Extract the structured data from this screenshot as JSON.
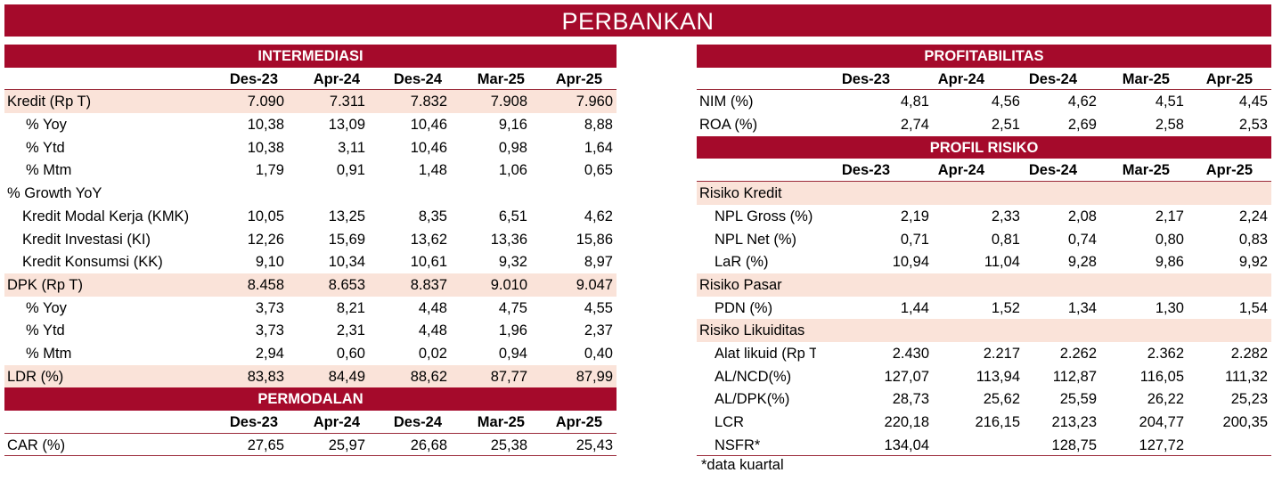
{
  "title": "PERBANKAN",
  "footnote": "*data kuartal",
  "periods": [
    "Des-23",
    "Apr-24",
    "Des-24",
    "Mar-25",
    "Apr-25"
  ],
  "intermediasi": {
    "section": "INTERMEDIASI",
    "rows": [
      {
        "label": "Kredit (Rp T)",
        "values": [
          "7.090",
          "7.311",
          "7.832",
          "7.908",
          "7.960"
        ]
      },
      {
        "label": "% Yoy",
        "values": [
          "10,38",
          "13,09",
          "10,46",
          "9,16",
          "8,88"
        ]
      },
      {
        "label": "% Ytd",
        "values": [
          "10,38",
          "3,11",
          "10,46",
          "0,98",
          "1,64"
        ]
      },
      {
        "label": "% Mtm",
        "values": [
          "1,79",
          "0,91",
          "1,48",
          "1,06",
          "0,65"
        ]
      },
      {
        "label": "% Growth YoY"
      },
      {
        "label": "Kredit Modal Kerja (KMK)",
        "values": [
          "10,05",
          "13,25",
          "8,35",
          "6,51",
          "4,62"
        ]
      },
      {
        "label": "Kredit Investasi (KI)",
        "values": [
          "12,26",
          "15,69",
          "13,62",
          "13,36",
          "15,86"
        ]
      },
      {
        "label": "Kredit Konsumsi (KK)",
        "values": [
          "9,10",
          "10,34",
          "10,61",
          "9,32",
          "8,97"
        ]
      },
      {
        "label": "DPK (Rp T)",
        "values": [
          "8.458",
          "8.653",
          "8.837",
          "9.010",
          "9.047"
        ]
      },
      {
        "label": "% Yoy",
        "values": [
          "3,73",
          "8,21",
          "4,48",
          "4,75",
          "4,55"
        ]
      },
      {
        "label": "% Ytd",
        "values": [
          "3,73",
          "2,31",
          "4,48",
          "1,96",
          "2,37"
        ]
      },
      {
        "label": "% Mtm",
        "values": [
          "2,94",
          "0,60",
          "0,02",
          "0,94",
          "0,40"
        ]
      },
      {
        "label": "LDR (%)",
        "values": [
          "83,83",
          "84,49",
          "88,62",
          "87,77",
          "87,99"
        ]
      }
    ]
  },
  "permodalan": {
    "section": "PERMODALAN",
    "rows": [
      {
        "label": "CAR (%)",
        "values": [
          "27,65",
          "25,97",
          "26,68",
          "25,38",
          "25,43"
        ]
      }
    ]
  },
  "profitabilitas": {
    "section": "PROFITABILITAS",
    "rows": [
      {
        "label": "NIM (%)",
        "values": [
          "4,81",
          "4,56",
          "4,62",
          "4,51",
          "4,45"
        ]
      },
      {
        "label": "ROA (%)",
        "values": [
          "2,74",
          "2,51",
          "2,69",
          "2,58",
          "2,53"
        ]
      }
    ]
  },
  "profil_risiko": {
    "section": "PROFIL RISIKO",
    "rows": [
      {
        "label": "Risiko Kredit"
      },
      {
        "label": "NPL Gross (%)",
        "values": [
          "2,19",
          "2,33",
          "2,08",
          "2,17",
          "2,24"
        ]
      },
      {
        "label": "NPL Net (%)",
        "values": [
          "0,71",
          "0,81",
          "0,74",
          "0,80",
          "0,83"
        ]
      },
      {
        "label": "LaR (%)",
        "values": [
          "10,94",
          "11,04",
          "9,28",
          "9,86",
          "9,92"
        ]
      },
      {
        "label": "Risiko Pasar"
      },
      {
        "label": "PDN (%)",
        "values": [
          "1,44",
          "1,52",
          "1,34",
          "1,30",
          "1,54"
        ]
      },
      {
        "label": "Risiko Likuiditas"
      },
      {
        "label": "Alat likuid (Rp T)",
        "values": [
          "2.430",
          "2.217",
          "2.262",
          "2.362",
          "2.282"
        ]
      },
      {
        "label": "AL/NCD(%)",
        "values": [
          "127,07",
          "113,94",
          "112,87",
          "116,05",
          "111,32"
        ]
      },
      {
        "label": "AL/DPK(%)",
        "values": [
          "28,73",
          "25,62",
          "25,59",
          "26,22",
          "25,23"
        ]
      },
      {
        "label": "LCR",
        "values": [
          "220,18",
          "216,15",
          "213,23",
          "204,77",
          "200,35"
        ]
      },
      {
        "label": "NSFR*",
        "values": [
          "134,04",
          "",
          "128,75",
          "127,72",
          ""
        ]
      }
    ]
  }
}
